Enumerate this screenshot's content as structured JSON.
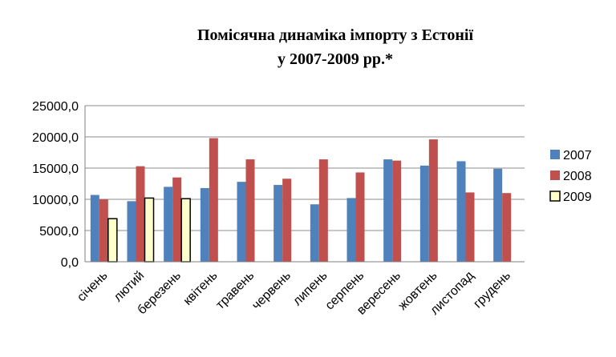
{
  "chart_data": {
    "type": "bar",
    "title": [
      "Помісячна динаміка імпорту з Естонії",
      "у 2007-2009 рр.*"
    ],
    "categories": [
      "січень",
      "лютий",
      "березень",
      "квітень",
      "травень",
      "червень",
      "липень",
      "серпень",
      "вересень",
      "жовтень",
      "листопад",
      "грудень"
    ],
    "series": [
      {
        "name": "2007",
        "color": "#4f81bd",
        "values": [
          10700,
          9700,
          12000,
          11800,
          12800,
          12300,
          9200,
          10200,
          16400,
          15400,
          16100,
          14900
        ]
      },
      {
        "name": "2008",
        "color": "#c0504d",
        "values": [
          10000,
          15300,
          13500,
          19800,
          16400,
          13300,
          16400,
          14300,
          16200,
          19600,
          11100,
          11000
        ]
      },
      {
        "name": "2009",
        "color": "#ffffcc",
        "values": [
          6900,
          10200,
          10100,
          null,
          null,
          null,
          null,
          null,
          null,
          null,
          null,
          null
        ]
      }
    ],
    "y_ticks": [
      "0,0",
      "5000,0",
      "10000,0",
      "15000,0",
      "20000,0",
      "25000,0"
    ],
    "ylim": [
      0,
      25000
    ],
    "grid": true,
    "legend_position": "right"
  }
}
